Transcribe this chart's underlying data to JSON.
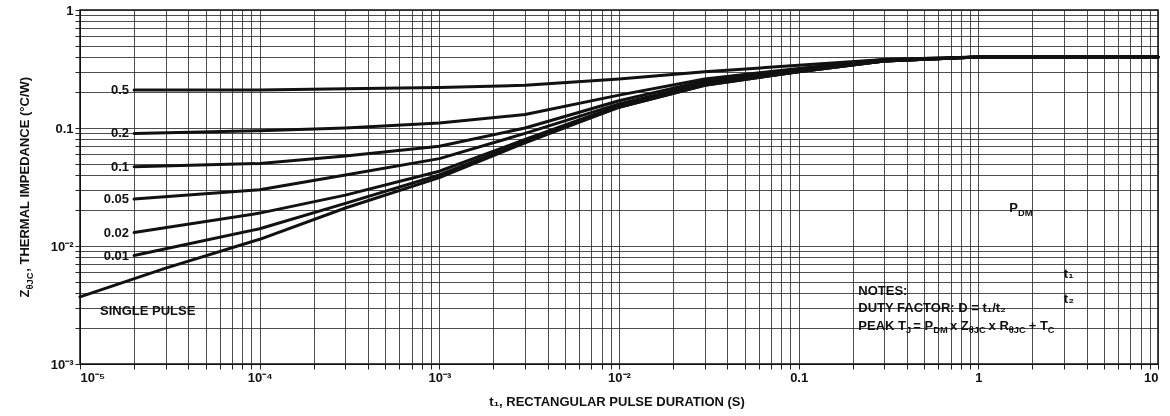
{
  "chart_data": {
    "type": "line",
    "xlabel": "t₁, RECTANGULAR PULSE DURATION (S)",
    "ylabel": "Z$_{θJC}$, THERMAL IMPEDANCE (°C/W)",
    "log": "xy",
    "grid": true,
    "line_style": "solid",
    "marker": "none",
    "xlim": [
      1e-05,
      10
    ],
    "ylim": [
      0.001,
      1
    ],
    "xticks": [
      {
        "value": 1e-05,
        "label": "10⁻⁵"
      },
      {
        "value": 2e-05,
        "label": null
      },
      {
        "value": 3e-05,
        "label": null
      },
      {
        "value": 4e-05,
        "label": null
      },
      {
        "value": 5e-05,
        "label": null
      },
      {
        "value": 6e-05,
        "label": null
      },
      {
        "value": 7e-05,
        "label": null
      },
      {
        "value": 8e-05,
        "label": null
      },
      {
        "value": 9e-05,
        "label": null
      },
      {
        "value": 0.0001,
        "label": "10⁻⁴"
      },
      {
        "value": 0.0002,
        "label": null
      },
      {
        "value": 0.0003,
        "label": null
      },
      {
        "value": 0.0004,
        "label": null
      },
      {
        "value": 0.0005,
        "label": null
      },
      {
        "value": 0.0006,
        "label": null
      },
      {
        "value": 0.0007,
        "label": null
      },
      {
        "value": 0.0008,
        "label": null
      },
      {
        "value": 0.0009,
        "label": null
      },
      {
        "value": 0.001,
        "label": "10⁻³"
      },
      {
        "value": 0.002,
        "label": null
      },
      {
        "value": 0.003,
        "label": null
      },
      {
        "value": 0.004,
        "label": null
      },
      {
        "value": 0.005,
        "label": null
      },
      {
        "value": 0.006,
        "label": null
      },
      {
        "value": 0.007,
        "label": null
      },
      {
        "value": 0.008,
        "label": null
      },
      {
        "value": 0.009,
        "label": null
      },
      {
        "value": 0.01,
        "label": "10⁻²"
      },
      {
        "value": 0.02,
        "label": null
      },
      {
        "value": 0.03,
        "label": null
      },
      {
        "value": 0.04,
        "label": null
      },
      {
        "value": 0.05,
        "label": null
      },
      {
        "value": 0.06,
        "label": null
      },
      {
        "value": 0.07,
        "label": null
      },
      {
        "value": 0.08,
        "label": null
      },
      {
        "value": 0.09,
        "label": null
      },
      0.1,
      {
        "value": 0.2,
        "label": null
      },
      {
        "value": 0.3,
        "label": null
      },
      {
        "value": 0.4,
        "label": null
      },
      {
        "value": 0.5,
        "label": null
      },
      {
        "value": 0.6,
        "label": null
      },
      {
        "value": 0.7,
        "label": null
      },
      {
        "value": 0.8,
        "label": null
      },
      {
        "value": 0.9,
        "label": null
      },
      1,
      {
        "value": 2,
        "label": null
      },
      {
        "value": 3,
        "label": null
      },
      {
        "value": 4,
        "label": null
      },
      {
        "value": 5,
        "label": null
      },
      {
        "value": 6,
        "label": null
      },
      {
        "value": 7,
        "label": null
      },
      {
        "value": 8,
        "label": null
      },
      {
        "value": 9,
        "label": null
      },
      10
    ],
    "yticks": [
      {
        "value": 0.001,
        "label": "10⁻³"
      },
      {
        "value": 0.002,
        "label": null
      },
      {
        "value": 0.003,
        "label": null
      },
      {
        "value": 0.004,
        "label": null
      },
      {
        "value": 0.005,
        "label": null
      },
      {
        "value": 0.006,
        "label": null
      },
      {
        "value": 0.007,
        "label": null
      },
      {
        "value": 0.008,
        "label": null
      },
      {
        "value": 0.009,
        "label": null
      },
      {
        "value": 0.01,
        "label": "10⁻²"
      },
      {
        "value": 0.02,
        "label": null
      },
      {
        "value": 0.03,
        "label": null
      },
      {
        "value": 0.04,
        "label": null
      },
      {
        "value": 0.05,
        "label": null
      },
      {
        "value": 0.06,
        "label": null
      },
      {
        "value": 0.07,
        "label": null
      },
      {
        "value": 0.08,
        "label": null
      },
      {
        "value": 0.09,
        "label": null
      },
      0.1,
      {
        "value": 0.2,
        "label": null
      },
      {
        "value": 0.3,
        "label": null
      },
      {
        "value": 0.4,
        "label": null
      },
      {
        "value": 0.5,
        "label": null
      },
      {
        "value": 0.6,
        "label": null
      },
      {
        "value": 0.7,
        "label": null
      },
      {
        "value": 0.8,
        "label": null
      },
      {
        "value": 0.9,
        "label": null
      },
      1
    ],
    "x": [
      2e-05,
      0.0001,
      0.0003,
      0.001,
      0.003,
      0.01,
      0.03,
      0.1,
      0.3,
      1,
      10
    ],
    "series": [
      {
        "name": "0.5",
        "color": "#111111",
        "values": [
          0.21,
          0.21,
          0.215,
          0.22,
          0.23,
          0.26,
          0.3,
          0.34,
          0.38,
          0.4,
          0.4
        ]
      },
      {
        "name": "0.2",
        "color": "#111111",
        "values": [
          0.09,
          0.095,
          0.1,
          0.11,
          0.13,
          0.19,
          0.26,
          0.32,
          0.38,
          0.4,
          0.4
        ]
      },
      {
        "name": "0.1",
        "color": "#111111",
        "values": [
          0.047,
          0.05,
          0.058,
          0.07,
          0.1,
          0.17,
          0.25,
          0.31,
          0.37,
          0.4,
          0.4
        ]
      },
      {
        "name": "0.05",
        "color": "#111111",
        "values": [
          0.025,
          0.03,
          0.04,
          0.055,
          0.09,
          0.16,
          0.24,
          0.31,
          0.37,
          0.4,
          0.4
        ]
      },
      {
        "name": "0.02",
        "color": "#111111",
        "values": [
          0.013,
          0.019,
          0.027,
          0.043,
          0.08,
          0.155,
          0.235,
          0.3,
          0.37,
          0.4,
          0.4
        ]
      },
      {
        "name": "0.01",
        "color": "#111111",
        "values": [
          0.0083,
          0.014,
          0.023,
          0.04,
          0.077,
          0.15,
          0.23,
          0.3,
          0.37,
          0.4,
          0.4
        ]
      },
      {
        "name": "SINGLE PULSE",
        "color": "#111111",
        "x": [
          1e-05,
          3e-05,
          0.0001,
          0.0003,
          0.001,
          0.003,
          0.01,
          0.03,
          0.1,
          0.3,
          1,
          10
        ],
        "values": [
          0.0037,
          0.0065,
          0.0114,
          0.021,
          0.038,
          0.075,
          0.15,
          0.23,
          0.3,
          0.37,
          0.4,
          0.4
        ]
      }
    ],
    "annotations": [
      "NOTES:",
      "DUTY FACTOR: D = t₁/t₂",
      "PEAK T$_{J}$ = P$_{DM}$ x Z$_{θJC}$ x R$_{θJC}$ + T$_{C}$",
      "P$_{DM}$",
      "t₁",
      "t₂"
    ]
  }
}
